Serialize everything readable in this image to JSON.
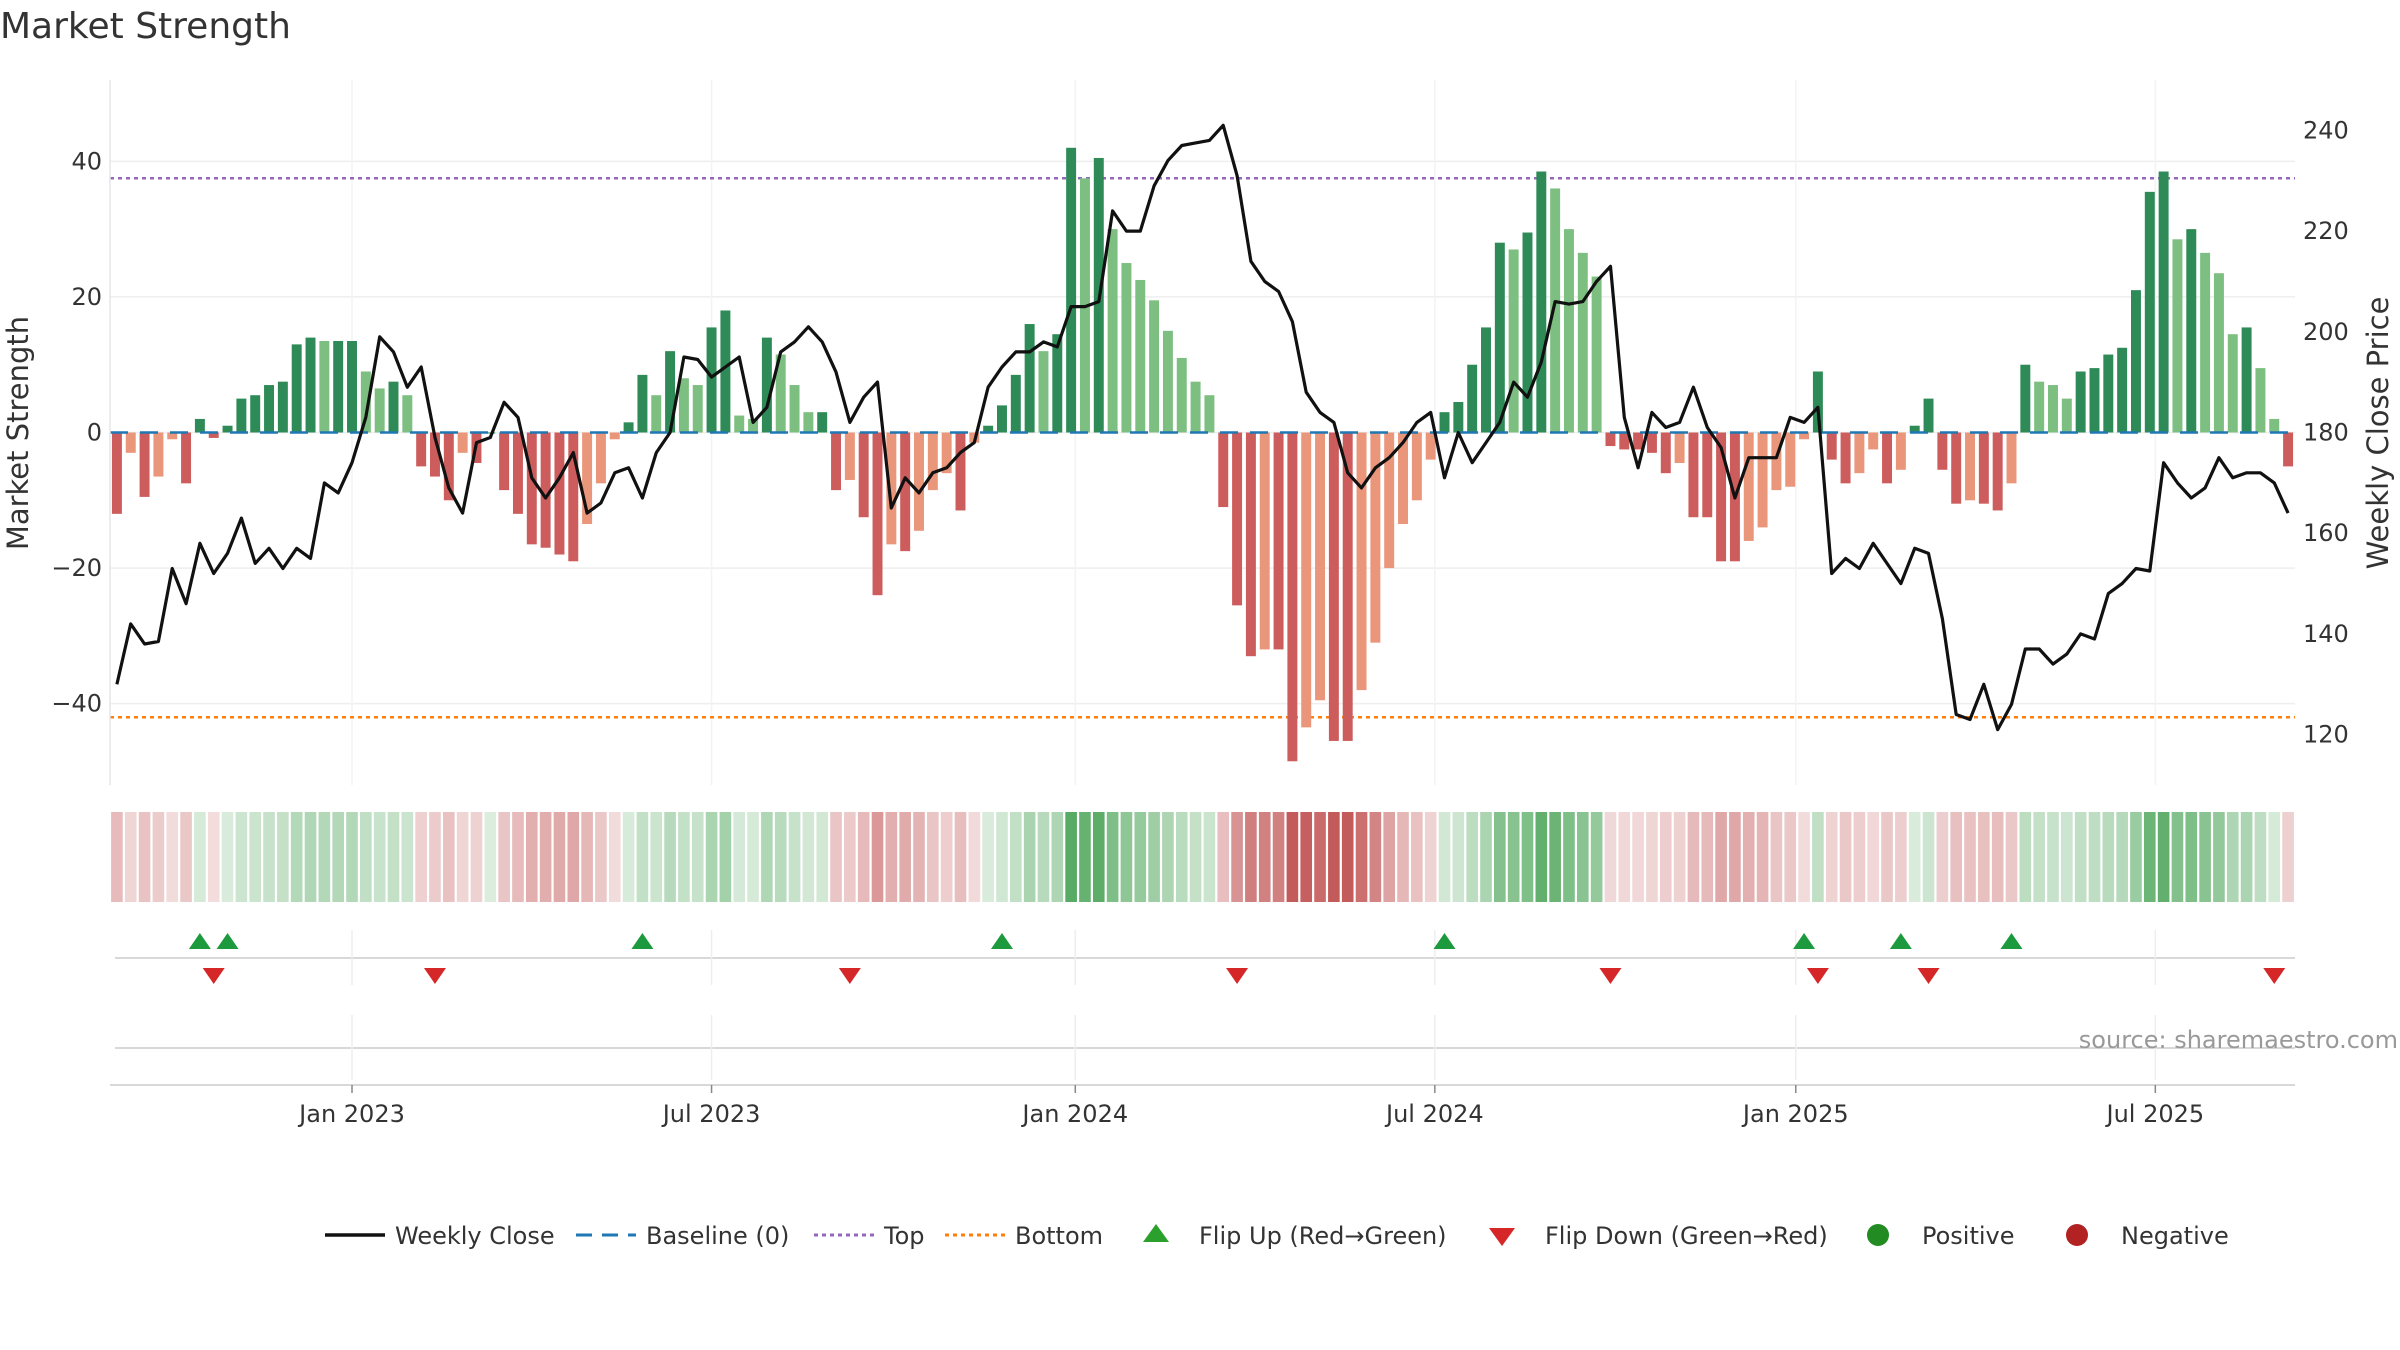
{
  "chart_data": {
    "type": "bar",
    "title": "Market Strength",
    "ylabel_left": "Market Strength",
    "ylabel_right": "Weekly Close Price",
    "ylim_left": [
      -52,
      52
    ],
    "ylim_right": [
      110,
      250
    ],
    "yticks_left": [
      40,
      20,
      0,
      -20,
      -40
    ],
    "ytick_labels_left": [
      "40",
      "20",
      "0",
      "−20",
      "−40"
    ],
    "yticks_right": [
      240,
      220,
      200,
      180,
      160,
      140,
      120
    ],
    "ytick_labels_right": [
      "240",
      "220",
      "200",
      "180",
      "160",
      "140",
      "120"
    ],
    "top_line": 37.5,
    "bottom_line": -42,
    "start_date": "2022-09-05",
    "x_ticks": [
      {
        "label": "Jan 2023",
        "week": 17
      },
      {
        "label": "Jul 2023",
        "week": 43
      },
      {
        "label": "Jan 2024",
        "week": 69.3
      },
      {
        "label": "Jul 2024",
        "week": 95.3
      },
      {
        "label": "Jan 2025",
        "week": 121.4
      },
      {
        "label": "Jul 2025",
        "week": 147.4
      }
    ],
    "strength": [
      -12,
      -3,
      -9.5,
      -6.5,
      -1,
      -7.5,
      2,
      -0.8,
      1,
      5,
      5.5,
      7,
      7.5,
      13,
      14,
      13.5,
      13.5,
      13.5,
      9,
      6.5,
      7.5,
      5.5,
      -5,
      -6.5,
      -10,
      -3,
      -4.5,
      0,
      -8.5,
      -12,
      -16.5,
      -17,
      -18,
      -19,
      -13.5,
      -7.5,
      -1,
      1.5,
      8.5,
      5.5,
      12,
      8,
      7,
      15.5,
      18,
      2.5,
      2,
      14,
      11.5,
      7,
      3,
      3,
      -8.5,
      -7,
      -12.5,
      -24,
      -16.5,
      -17.5,
      -14.5,
      -8.5,
      -6,
      -11.5,
      -1.5,
      1,
      4,
      8.5,
      16,
      12,
      14.5,
      42,
      37.5,
      40.5,
      30,
      25,
      22.5,
      19.5,
      15,
      11,
      7.5,
      5.5,
      -11,
      -25.5,
      -33,
      -32,
      -32,
      -48.5,
      -43.5,
      -39.5,
      -45.5,
      -45.5,
      -38,
      -31,
      -20,
      -13.5,
      -10,
      -4,
      3,
      4.5,
      10,
      15.5,
      28,
      27,
      29.5,
      38.5,
      36,
      30,
      26.5,
      23,
      -2,
      -2.5,
      -2.5,
      -3,
      -6,
      -4.5,
      -12.5,
      -12.5,
      -19,
      -19,
      -16,
      -14,
      -8.5,
      -8,
      -1,
      9,
      -4,
      -7.5,
      -6,
      -2.5,
      -7.5,
      -5.5,
      1,
      5,
      -5.5,
      -10.5,
      -10,
      -10.5,
      -11.5,
      -7.5,
      10,
      7.5,
      7,
      5,
      9,
      9.5,
      11.5,
      12.5,
      21,
      35.5,
      38.5,
      28.5,
      30,
      26.5,
      23.5,
      14.5,
      15.5,
      9.5,
      2,
      -5
    ],
    "flips_up_weeks": [
      6,
      8,
      38,
      64,
      96,
      122,
      129,
      137
    ],
    "flips_down_weeks": [
      7,
      23,
      53,
      81,
      108,
      123,
      131,
      156
    ],
    "weekly_close": [
      [
        0,
        130
      ],
      [
        1,
        142
      ],
      [
        2,
        138
      ],
      [
        3,
        138.5
      ],
      [
        4,
        153
      ],
      [
        5,
        146
      ],
      [
        6,
        158
      ],
      [
        7,
        152
      ],
      [
        8,
        156
      ],
      [
        9,
        163
      ],
      [
        10,
        154
      ],
      [
        11,
        157
      ],
      [
        12,
        153
      ],
      [
        13,
        157
      ],
      [
        14,
        155
      ],
      [
        15,
        170
      ],
      [
        16,
        168
      ],
      [
        17,
        174
      ],
      [
        18,
        183
      ],
      [
        19,
        199
      ],
      [
        20,
        196
      ],
      [
        21,
        189
      ],
      [
        22,
        193
      ],
      [
        23,
        179
      ],
      [
        24,
        169
      ],
      [
        25,
        164
      ],
      [
        26,
        178
      ],
      [
        27,
        179
      ],
      [
        28,
        186
      ],
      [
        29,
        183
      ],
      [
        30,
        171
      ],
      [
        31,
        167
      ],
      [
        32,
        171
      ],
      [
        33,
        176
      ],
      [
        34,
        164
      ],
      [
        35,
        166
      ],
      [
        36,
        172
      ],
      [
        37,
        173
      ],
      [
        38,
        167
      ],
      [
        39,
        176
      ],
      [
        40,
        180
      ],
      [
        41,
        195
      ],
      [
        42,
        194.5
      ],
      [
        43,
        191
      ],
      [
        44,
        193
      ],
      [
        45,
        195
      ],
      [
        46,
        182
      ],
      [
        47,
        185
      ],
      [
        48,
        196
      ],
      [
        49,
        198
      ],
      [
        50,
        201
      ],
      [
        51,
        198
      ],
      [
        52,
        192
      ],
      [
        53,
        182
      ],
      [
        54,
        187
      ],
      [
        55,
        190
      ],
      [
        56,
        165
      ],
      [
        57,
        171
      ],
      [
        58,
        168
      ],
      [
        59,
        172
      ],
      [
        60,
        173
      ],
      [
        61,
        176
      ],
      [
        62,
        178
      ],
      [
        63,
        189
      ],
      [
        64,
        193
      ],
      [
        65,
        196
      ],
      [
        66,
        196
      ],
      [
        67,
        198
      ],
      [
        68,
        197
      ],
      [
        69,
        205
      ],
      [
        70,
        205
      ],
      [
        71,
        206
      ],
      [
        72,
        224
      ],
      [
        73,
        220
      ],
      [
        74,
        220
      ],
      [
        75,
        229
      ],
      [
        76,
        234
      ],
      [
        77,
        237
      ],
      [
        78,
        237.5
      ],
      [
        79,
        238
      ],
      [
        80,
        241
      ],
      [
        81,
        231
      ],
      [
        82,
        214
      ],
      [
        83,
        210
      ],
      [
        84,
        208
      ],
      [
        85,
        202
      ],
      [
        86,
        188
      ],
      [
        87,
        184
      ],
      [
        88,
        182
      ],
      [
        89,
        172
      ],
      [
        90,
        169
      ],
      [
        91,
        173
      ],
      [
        92,
        175
      ],
      [
        93,
        178
      ],
      [
        94,
        182
      ],
      [
        95,
        184
      ],
      [
        96,
        171
      ],
      [
        97,
        180
      ],
      [
        98,
        174
      ],
      [
        99,
        178
      ],
      [
        100,
        182
      ],
      [
        101,
        190
      ],
      [
        102,
        187
      ],
      [
        103,
        194
      ],
      [
        104,
        206
      ],
      [
        105,
        205.5
      ],
      [
        106,
        206
      ],
      [
        107,
        210
      ],
      [
        108,
        213
      ],
      [
        109,
        183
      ],
      [
        110,
        173
      ],
      [
        111,
        184
      ],
      [
        112,
        181
      ],
      [
        113,
        182
      ],
      [
        114,
        189
      ],
      [
        115,
        181
      ],
      [
        116,
        177
      ],
      [
        117,
        167
      ],
      [
        118,
        175
      ],
      [
        119,
        175
      ],
      [
        120,
        175
      ],
      [
        121,
        183
      ],
      [
        122,
        182
      ],
      [
        123,
        185
      ],
      [
        124,
        152
      ],
      [
        125,
        155
      ],
      [
        126,
        153
      ],
      [
        127,
        158
      ],
      [
        128,
        154
      ],
      [
        129,
        150
      ],
      [
        130,
        157
      ],
      [
        131,
        156
      ],
      [
        132,
        143
      ],
      [
        133,
        124
      ],
      [
        134,
        123
      ],
      [
        135,
        130
      ],
      [
        136,
        121
      ],
      [
        137,
        126
      ],
      [
        138,
        137
      ],
      [
        139,
        137
      ],
      [
        140,
        134
      ],
      [
        141,
        136
      ],
      [
        142,
        140
      ],
      [
        143,
        139
      ],
      [
        144,
        148
      ],
      [
        145,
        150
      ],
      [
        146,
        153
      ],
      [
        147,
        152.5
      ],
      [
        148,
        174
      ],
      [
        149,
        170
      ],
      [
        150,
        167
      ],
      [
        151,
        169
      ],
      [
        152,
        175
      ],
      [
        153,
        171
      ],
      [
        154,
        172
      ],
      [
        155,
        172
      ],
      [
        156,
        170
      ],
      [
        157,
        164
      ]
    ],
    "legend": [
      {
        "label": "Weekly Close",
        "symbol": "line",
        "color": "#111111"
      },
      {
        "label": "Baseline (0)",
        "symbol": "dash",
        "color": "#1f77b4"
      },
      {
        "label": "Top",
        "symbol": "dot",
        "color": "#9467bd"
      },
      {
        "label": "Bottom",
        "symbol": "dot",
        "color": "#ff7f0e"
      },
      {
        "label": "Flip Up (Red→Green)",
        "symbol": "triangle-up",
        "color": "#2ca02c"
      },
      {
        "label": "Flip Down (Green→Red)",
        "symbol": "triangle-down",
        "color": "#d62728"
      },
      {
        "label": "Positive",
        "symbol": "circle",
        "color": "#228b22"
      },
      {
        "label": "Negative",
        "symbol": "circle",
        "color": "#b22222"
      }
    ],
    "legend_position": "bottom"
  },
  "source": "source: sharemaestro.com",
  "colors": {
    "pos_strong": "#2e8b57",
    "pos_light": "#7cbf80",
    "neg_strong": "#cd5c5c",
    "neg_light": "#e9967a",
    "close_line": "#111111",
    "baseline": "#1f77b4",
    "top": "#9467bd",
    "bottom": "#ff7f0e"
  }
}
